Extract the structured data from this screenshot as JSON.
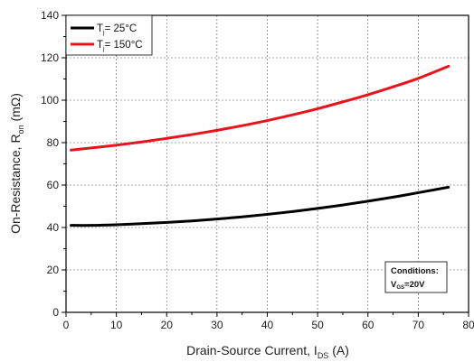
{
  "chart_data": {
    "type": "line",
    "xlabel": {
      "main": "Drain-Source Current, I",
      "sub": "DS",
      "unit": " (A)"
    },
    "ylabel": {
      "main": "On-Resistance, R",
      "sub": "on",
      "unit": " (mΩ)"
    },
    "xlim": [
      0,
      80
    ],
    "ylim": [
      0,
      140
    ],
    "xticks": [
      0,
      10,
      20,
      30,
      40,
      50,
      60,
      70,
      80
    ],
    "yticks": [
      0,
      20,
      40,
      60,
      80,
      100,
      120,
      140
    ],
    "grid": true,
    "legend_position": "top-left",
    "series": [
      {
        "legend_main": "T",
        "legend_sub": "j",
        "legend_rest": "=  25°C",
        "color": "#000000",
        "x": [
          1,
          5,
          10,
          15,
          20,
          25,
          30,
          35,
          40,
          45,
          50,
          55,
          60,
          65,
          70,
          76
        ],
        "y": [
          41,
          41,
          41.3,
          41.8,
          42.4,
          43.1,
          44,
          45,
          46.2,
          47.5,
          49,
          50.6,
          52.4,
          54.3,
          56.4,
          59
        ]
      },
      {
        "legend_main": "T",
        "legend_sub": "j",
        "legend_rest": "=  150°C",
        "color": "#e8141c",
        "x": [
          1,
          5,
          10,
          15,
          20,
          25,
          30,
          35,
          40,
          45,
          50,
          55,
          60,
          65,
          70,
          76
        ],
        "y": [
          76.5,
          77.5,
          78.8,
          80.3,
          82,
          83.8,
          85.8,
          88,
          90.4,
          93.1,
          96,
          99.2,
          102.6,
          106.3,
          110.3,
          116
        ]
      }
    ],
    "annotation": {
      "line1": "Conditions:",
      "line2_main": "V",
      "line2_sub": "GS",
      "line2_rest": "=20V"
    }
  }
}
